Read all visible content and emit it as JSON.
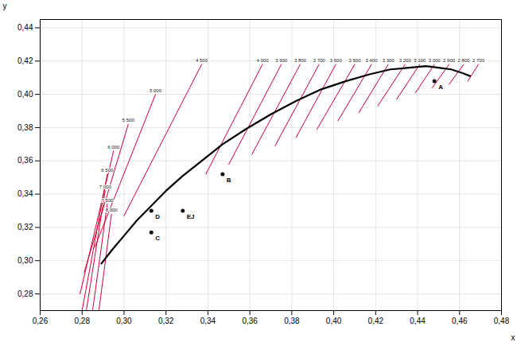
{
  "chart_data": {
    "type": "line",
    "xlabel": "x",
    "ylabel": "y",
    "xlim": [
      0.26,
      0.48
    ],
    "ylim": [
      0.27,
      0.445
    ],
    "xticks": [
      {
        "value": 0.26,
        "label": "0,26"
      },
      {
        "value": 0.28,
        "label": "0,28"
      },
      {
        "value": 0.3,
        "label": "0,30"
      },
      {
        "value": 0.32,
        "label": "0,32"
      },
      {
        "value": 0.34,
        "label": "0,34"
      },
      {
        "value": 0.36,
        "label": "0,36"
      },
      {
        "value": 0.38,
        "label": "0,38"
      },
      {
        "value": 0.4,
        "label": "0,40"
      },
      {
        "value": 0.42,
        "label": "0,42"
      },
      {
        "value": 0.44,
        "label": "0,44"
      },
      {
        "value": 0.46,
        "label": "0,46"
      },
      {
        "value": 0.48,
        "label": "0,48"
      }
    ],
    "yticks": [
      {
        "value": 0.28,
        "label": "0,28"
      },
      {
        "value": 0.3,
        "label": "0,30"
      },
      {
        "value": 0.32,
        "label": "0,32"
      },
      {
        "value": 0.34,
        "label": "0,34"
      },
      {
        "value": 0.36,
        "label": "0,36"
      },
      {
        "value": 0.38,
        "label": "0,38"
      },
      {
        "value": 0.4,
        "label": "0,40"
      },
      {
        "value": 0.42,
        "label": "0,42"
      },
      {
        "value": 0.44,
        "label": "0,44"
      }
    ],
    "grid": true,
    "series": [
      {
        "type": "line",
        "color": "#CC0033",
        "label": "2 700",
        "x": [
          0.464,
          0.469
        ],
        "y": [
          0.408,
          0.418
        ]
      },
      {
        "type": "line",
        "color": "#CC0033",
        "label": "2 800",
        "x": [
          0.455,
          0.462
        ],
        "y": [
          0.406,
          0.418
        ]
      },
      {
        "type": "line",
        "color": "#CC0033",
        "label": "2 900",
        "x": [
          0.447,
          0.455
        ],
        "y": [
          0.404,
          0.418
        ]
      },
      {
        "type": "line",
        "color": "#CC0033",
        "label": "3 000",
        "x": [
          0.439,
          0.448
        ],
        "y": [
          0.401,
          0.418
        ]
      },
      {
        "type": "line",
        "color": "#CC0033",
        "label": "3 100",
        "x": [
          0.43,
          0.441
        ],
        "y": [
          0.397,
          0.418
        ]
      },
      {
        "type": "line",
        "color": "#CC0033",
        "label": "3 200",
        "x": [
          0.421,
          0.434
        ],
        "y": [
          0.393,
          0.418
        ]
      },
      {
        "type": "line",
        "color": "#CC0033",
        "label": "3 300",
        "x": [
          0.412,
          0.426
        ],
        "y": [
          0.389,
          0.418
        ]
      },
      {
        "type": "line",
        "color": "#CC0033",
        "label": "3 400",
        "x": [
          0.402,
          0.418
        ],
        "y": [
          0.384,
          0.418
        ]
      },
      {
        "type": "line",
        "color": "#CC0033",
        "label": "3 500",
        "x": [
          0.392,
          0.41
        ],
        "y": [
          0.379,
          0.418
        ]
      },
      {
        "type": "line",
        "color": "#CC0033",
        "label": "3 600",
        "x": [
          0.382,
          0.401
        ],
        "y": [
          0.374,
          0.418
        ]
      },
      {
        "type": "line",
        "color": "#CC0033",
        "label": "3 700",
        "x": [
          0.372,
          0.393
        ],
        "y": [
          0.369,
          0.418
        ]
      },
      {
        "type": "line",
        "color": "#CC0033",
        "label": "3 800",
        "x": [
          0.361,
          0.384
        ],
        "y": [
          0.364,
          0.418
        ]
      },
      {
        "type": "line",
        "color": "#CC0033",
        "label": "3 900",
        "x": [
          0.35,
          0.375
        ],
        "y": [
          0.358,
          0.418
        ]
      },
      {
        "type": "line",
        "color": "#CC0033",
        "label": "4 000",
        "x": [
          0.339,
          0.366
        ],
        "y": [
          0.352,
          0.418
        ]
      },
      {
        "type": "line",
        "color": "#CC0033",
        "label": "4 500",
        "x": [
          0.3,
          0.337
        ],
        "y": [
          0.327,
          0.418
        ]
      },
      {
        "type": "line",
        "color": "#CC0033",
        "label": "5 000",
        "x": [
          0.286,
          0.315
        ],
        "y": [
          0.308,
          0.4
        ]
      },
      {
        "type": "line",
        "color": "#CC0033",
        "label": "5 500",
        "x": [
          0.281,
          0.302
        ],
        "y": [
          0.293,
          0.382
        ]
      },
      {
        "type": "line",
        "color": "#CC0033",
        "label": "6 000",
        "x": [
          0.279,
          0.295
        ],
        "y": [
          0.28,
          0.366
        ]
      },
      {
        "type": "line",
        "color": "#CC0033",
        "label": "6 500",
        "x": [
          0.28,
          0.292
        ],
        "y": [
          0.27,
          0.352
        ]
      },
      {
        "type": "line",
        "color": "#CC0033",
        "label": "7 000",
        "x": [
          0.282,
          0.291
        ],
        "y": [
          0.27,
          0.342
        ]
      },
      {
        "type": "line",
        "color": "#CC0033",
        "label": "7 500",
        "x": [
          0.285,
          0.292
        ],
        "y": [
          0.27,
          0.334
        ]
      },
      {
        "type": "line",
        "color": "#CC0033",
        "label": "8 000",
        "x": [
          0.288,
          0.294
        ],
        "y": [
          0.27,
          0.328
        ]
      },
      {
        "type": "line",
        "color": "#000000",
        "x": [
          0.2892,
          0.2945,
          0.3,
          0.306,
          0.313,
          0.32,
          0.328,
          0.337,
          0.347,
          0.358,
          0.37,
          0.382,
          0.394,
          0.406,
          0.417,
          0.427,
          0.436,
          0.444,
          0.45,
          0.456,
          0.461,
          0.465
        ],
        "y": [
          0.2983,
          0.3068,
          0.315,
          0.324,
          0.333,
          0.342,
          0.351,
          0.36,
          0.37,
          0.379,
          0.388,
          0.396,
          0.403,
          0.408,
          0.412,
          0.415,
          0.416,
          0.417,
          0.416,
          0.415,
          0.413,
          0.411
        ]
      },
      {
        "type": "scatter",
        "color": "#111111",
        "labels": [
          "A",
          "B",
          "D",
          "EJ",
          "C"
        ],
        "x": [
          0.448,
          0.347,
          0.313,
          0.328,
          0.313
        ],
        "y": [
          0.408,
          0.352,
          0.33,
          0.33,
          0.317
        ]
      }
    ]
  }
}
